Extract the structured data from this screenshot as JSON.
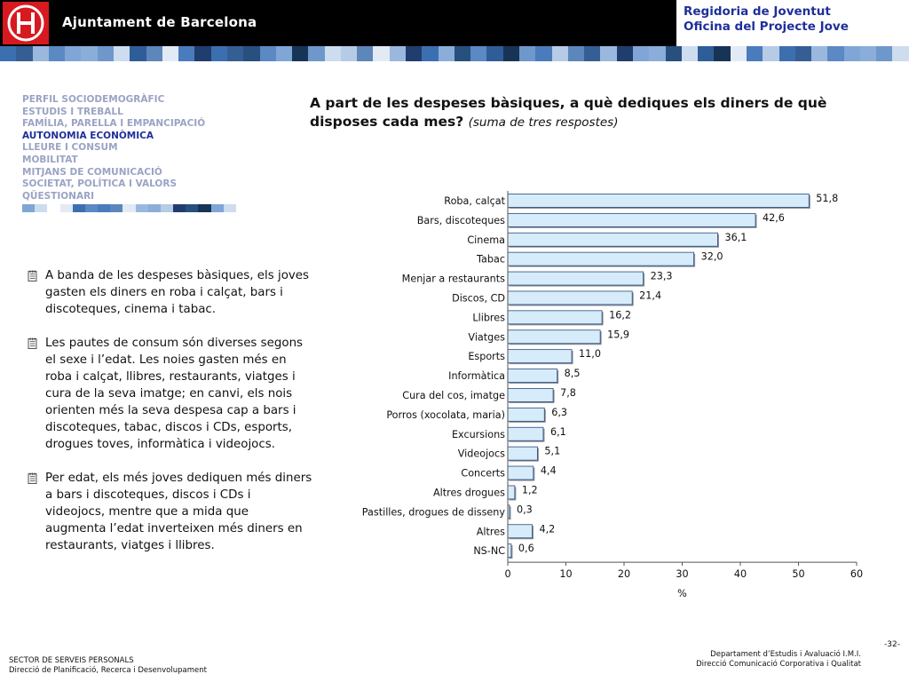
{
  "header": {
    "org_name": "Ajuntament de Barcelona",
    "dept_line1": "Regidoria de Joventut",
    "dept_line2": "Oficina del Projecte Jove"
  },
  "colors": {
    "header_bg": "#000000",
    "logo_red": "#d71920",
    "brand_blue": "#1f2f9a",
    "nav_inactive": "#9aa3c4",
    "bar_fill": "#d6ecfb",
    "bar_stroke": "#2b4a78",
    "bar_shadow": "#8a8f99"
  },
  "nav": {
    "items": [
      {
        "label": "PERFIL SOCIODEMOGRÀFIC",
        "active": false
      },
      {
        "label": "ESTUDIS I TREBALL",
        "active": false
      },
      {
        "label": "FAMÍLIA, PARELLA I EMPANCIPACIÓ",
        "active": false
      },
      {
        "label": "AUTONOMIA ECONÒMICA",
        "active": true
      },
      {
        "label": "LLEURE I CONSUM",
        "active": false
      },
      {
        "label": "MOBILITAT",
        "active": false
      },
      {
        "label": "MITJANS DE COMUNICACIÓ",
        "active": false
      },
      {
        "label": "SOCIETAT, POLÍTICA I VALORS",
        "active": false
      },
      {
        "label": "QÜESTIONARI",
        "active": false
      }
    ]
  },
  "bullets": [
    {
      "text": "A banda de les despeses bàsiques, els joves gasten els diners en roba i calçat, bars i discoteques, cinema i tabac.",
      "icon": "notepad-icon"
    },
    {
      "text": "Les pautes de consum són diverses segons el sexe i l’edat. Les noies gasten més en roba i calçat, llibres, restaurants, viatges i cura de la seva imatge; en canvi, els nois orienten més la seva despesa cap a bars i discoteques, tabac, discos i CDs, esports, drogues toves, informàtica i videojocs.",
      "icon": "notepad-icon"
    },
    {
      "text": "Per edat, els més joves dediquen més diners a bars i discoteques, discos i CDs i videojocs, mentre que a mida que augmenta l’edat inverteixen més diners en restaurants, viatges i llibres.",
      "icon": "notepad-icon"
    }
  ],
  "title": {
    "main": "A part de les despeses bàsiques, a què dediques els diners de què disposes cada mes?",
    "subtitle": "(suma de tres respostes)"
  },
  "chart_data": {
    "type": "bar",
    "orientation": "horizontal",
    "categories": [
      "Roba, calçat",
      "Bars, discoteques",
      "Cinema",
      "Tabac",
      "Menjar a restaurants",
      "Discos, CD",
      "Llibres",
      "Viatges",
      "Esports",
      "Informàtica",
      "Cura del cos, imatge",
      "Porros (xocolata, maria)",
      "Excursions",
      "Videojocs",
      "Concerts",
      "Altres drogues",
      "Pastilles, drogues de disseny",
      "Altres",
      "NS-NC"
    ],
    "values": [
      51.8,
      42.6,
      36.1,
      32.0,
      23.3,
      21.4,
      16.2,
      15.9,
      11.0,
      8.5,
      7.8,
      6.3,
      6.1,
      5.1,
      4.4,
      1.2,
      0.3,
      4.2,
      0.6
    ],
    "value_labels": [
      "51,8",
      "42,6",
      "36,1",
      "32,0",
      "23,3",
      "21,4",
      "16,2",
      "15,9",
      "11,0",
      "8,5",
      "7,8",
      "6,3",
      "6,1",
      "5,1",
      "4,4",
      "1,2",
      "0,3",
      "4,2",
      "0,6"
    ],
    "xlabel": "%",
    "xlim": [
      0,
      60
    ],
    "xticks": [
      "0",
      "10",
      "20",
      "30",
      "40",
      "50",
      "60"
    ],
    "grid": false,
    "legend": "none"
  },
  "footer": {
    "left_line1": "SECTOR DE SERVEIS PERSONALS",
    "left_line2": "Direcció de Planificació, Recerca i Desenvolupament",
    "right_line1": "Departament d’Estudis i Avaluació I.M.I.",
    "right_line2": "Direcció Comunicació Corporativa i Qualitat",
    "page_number": "-32-"
  }
}
